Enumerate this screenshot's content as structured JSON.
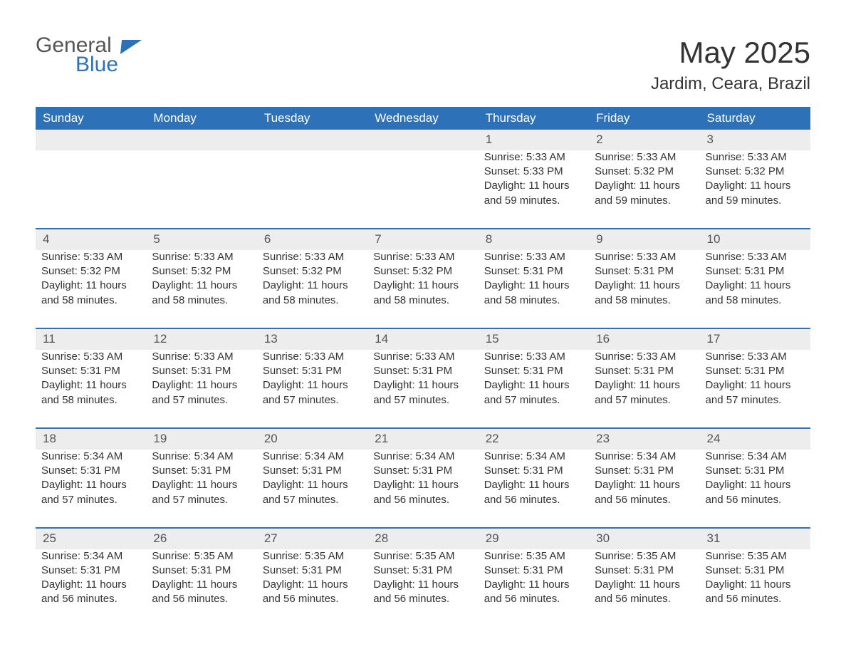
{
  "logo": {
    "line1": "General",
    "line2": "Blue"
  },
  "header": {
    "month_title": "May 2025",
    "location": "Jardim, Ceara, Brazil"
  },
  "colors": {
    "brand_blue": "#2d72b8",
    "header_bg": "#2d72b8",
    "header_text": "#ffffff",
    "daynum_bg": "#ededed",
    "body_text": "#333333",
    "page_bg": "#ffffff"
  },
  "typography": {
    "month_title_fontsize": 42,
    "location_fontsize": 24,
    "dayheader_fontsize": 17,
    "cell_fontsize": 15
  },
  "calendar": {
    "type": "table",
    "day_headers": [
      "Sunday",
      "Monday",
      "Tuesday",
      "Wednesday",
      "Thursday",
      "Friday",
      "Saturday"
    ],
    "weeks": [
      [
        null,
        null,
        null,
        null,
        {
          "num": "1",
          "sunrise": "Sunrise: 5:33 AM",
          "sunset": "Sunset: 5:33 PM",
          "daylight1": "Daylight: 11 hours",
          "daylight2": "and 59 minutes."
        },
        {
          "num": "2",
          "sunrise": "Sunrise: 5:33 AM",
          "sunset": "Sunset: 5:32 PM",
          "daylight1": "Daylight: 11 hours",
          "daylight2": "and 59 minutes."
        },
        {
          "num": "3",
          "sunrise": "Sunrise: 5:33 AM",
          "sunset": "Sunset: 5:32 PM",
          "daylight1": "Daylight: 11 hours",
          "daylight2": "and 59 minutes."
        }
      ],
      [
        {
          "num": "4",
          "sunrise": "Sunrise: 5:33 AM",
          "sunset": "Sunset: 5:32 PM",
          "daylight1": "Daylight: 11 hours",
          "daylight2": "and 58 minutes."
        },
        {
          "num": "5",
          "sunrise": "Sunrise: 5:33 AM",
          "sunset": "Sunset: 5:32 PM",
          "daylight1": "Daylight: 11 hours",
          "daylight2": "and 58 minutes."
        },
        {
          "num": "6",
          "sunrise": "Sunrise: 5:33 AM",
          "sunset": "Sunset: 5:32 PM",
          "daylight1": "Daylight: 11 hours",
          "daylight2": "and 58 minutes."
        },
        {
          "num": "7",
          "sunrise": "Sunrise: 5:33 AM",
          "sunset": "Sunset: 5:32 PM",
          "daylight1": "Daylight: 11 hours",
          "daylight2": "and 58 minutes."
        },
        {
          "num": "8",
          "sunrise": "Sunrise: 5:33 AM",
          "sunset": "Sunset: 5:31 PM",
          "daylight1": "Daylight: 11 hours",
          "daylight2": "and 58 minutes."
        },
        {
          "num": "9",
          "sunrise": "Sunrise: 5:33 AM",
          "sunset": "Sunset: 5:31 PM",
          "daylight1": "Daylight: 11 hours",
          "daylight2": "and 58 minutes."
        },
        {
          "num": "10",
          "sunrise": "Sunrise: 5:33 AM",
          "sunset": "Sunset: 5:31 PM",
          "daylight1": "Daylight: 11 hours",
          "daylight2": "and 58 minutes."
        }
      ],
      [
        {
          "num": "11",
          "sunrise": "Sunrise: 5:33 AM",
          "sunset": "Sunset: 5:31 PM",
          "daylight1": "Daylight: 11 hours",
          "daylight2": "and 58 minutes."
        },
        {
          "num": "12",
          "sunrise": "Sunrise: 5:33 AM",
          "sunset": "Sunset: 5:31 PM",
          "daylight1": "Daylight: 11 hours",
          "daylight2": "and 57 minutes."
        },
        {
          "num": "13",
          "sunrise": "Sunrise: 5:33 AM",
          "sunset": "Sunset: 5:31 PM",
          "daylight1": "Daylight: 11 hours",
          "daylight2": "and 57 minutes."
        },
        {
          "num": "14",
          "sunrise": "Sunrise: 5:33 AM",
          "sunset": "Sunset: 5:31 PM",
          "daylight1": "Daylight: 11 hours",
          "daylight2": "and 57 minutes."
        },
        {
          "num": "15",
          "sunrise": "Sunrise: 5:33 AM",
          "sunset": "Sunset: 5:31 PM",
          "daylight1": "Daylight: 11 hours",
          "daylight2": "and 57 minutes."
        },
        {
          "num": "16",
          "sunrise": "Sunrise: 5:33 AM",
          "sunset": "Sunset: 5:31 PM",
          "daylight1": "Daylight: 11 hours",
          "daylight2": "and 57 minutes."
        },
        {
          "num": "17",
          "sunrise": "Sunrise: 5:33 AM",
          "sunset": "Sunset: 5:31 PM",
          "daylight1": "Daylight: 11 hours",
          "daylight2": "and 57 minutes."
        }
      ],
      [
        {
          "num": "18",
          "sunrise": "Sunrise: 5:34 AM",
          "sunset": "Sunset: 5:31 PM",
          "daylight1": "Daylight: 11 hours",
          "daylight2": "and 57 minutes."
        },
        {
          "num": "19",
          "sunrise": "Sunrise: 5:34 AM",
          "sunset": "Sunset: 5:31 PM",
          "daylight1": "Daylight: 11 hours",
          "daylight2": "and 57 minutes."
        },
        {
          "num": "20",
          "sunrise": "Sunrise: 5:34 AM",
          "sunset": "Sunset: 5:31 PM",
          "daylight1": "Daylight: 11 hours",
          "daylight2": "and 57 minutes."
        },
        {
          "num": "21",
          "sunrise": "Sunrise: 5:34 AM",
          "sunset": "Sunset: 5:31 PM",
          "daylight1": "Daylight: 11 hours",
          "daylight2": "and 56 minutes."
        },
        {
          "num": "22",
          "sunrise": "Sunrise: 5:34 AM",
          "sunset": "Sunset: 5:31 PM",
          "daylight1": "Daylight: 11 hours",
          "daylight2": "and 56 minutes."
        },
        {
          "num": "23",
          "sunrise": "Sunrise: 5:34 AM",
          "sunset": "Sunset: 5:31 PM",
          "daylight1": "Daylight: 11 hours",
          "daylight2": "and 56 minutes."
        },
        {
          "num": "24",
          "sunrise": "Sunrise: 5:34 AM",
          "sunset": "Sunset: 5:31 PM",
          "daylight1": "Daylight: 11 hours",
          "daylight2": "and 56 minutes."
        }
      ],
      [
        {
          "num": "25",
          "sunrise": "Sunrise: 5:34 AM",
          "sunset": "Sunset: 5:31 PM",
          "daylight1": "Daylight: 11 hours",
          "daylight2": "and 56 minutes."
        },
        {
          "num": "26",
          "sunrise": "Sunrise: 5:35 AM",
          "sunset": "Sunset: 5:31 PM",
          "daylight1": "Daylight: 11 hours",
          "daylight2": "and 56 minutes."
        },
        {
          "num": "27",
          "sunrise": "Sunrise: 5:35 AM",
          "sunset": "Sunset: 5:31 PM",
          "daylight1": "Daylight: 11 hours",
          "daylight2": "and 56 minutes."
        },
        {
          "num": "28",
          "sunrise": "Sunrise: 5:35 AM",
          "sunset": "Sunset: 5:31 PM",
          "daylight1": "Daylight: 11 hours",
          "daylight2": "and 56 minutes."
        },
        {
          "num": "29",
          "sunrise": "Sunrise: 5:35 AM",
          "sunset": "Sunset: 5:31 PM",
          "daylight1": "Daylight: 11 hours",
          "daylight2": "and 56 minutes."
        },
        {
          "num": "30",
          "sunrise": "Sunrise: 5:35 AM",
          "sunset": "Sunset: 5:31 PM",
          "daylight1": "Daylight: 11 hours",
          "daylight2": "and 56 minutes."
        },
        {
          "num": "31",
          "sunrise": "Sunrise: 5:35 AM",
          "sunset": "Sunset: 5:31 PM",
          "daylight1": "Daylight: 11 hours",
          "daylight2": "and 56 minutes."
        }
      ]
    ]
  }
}
